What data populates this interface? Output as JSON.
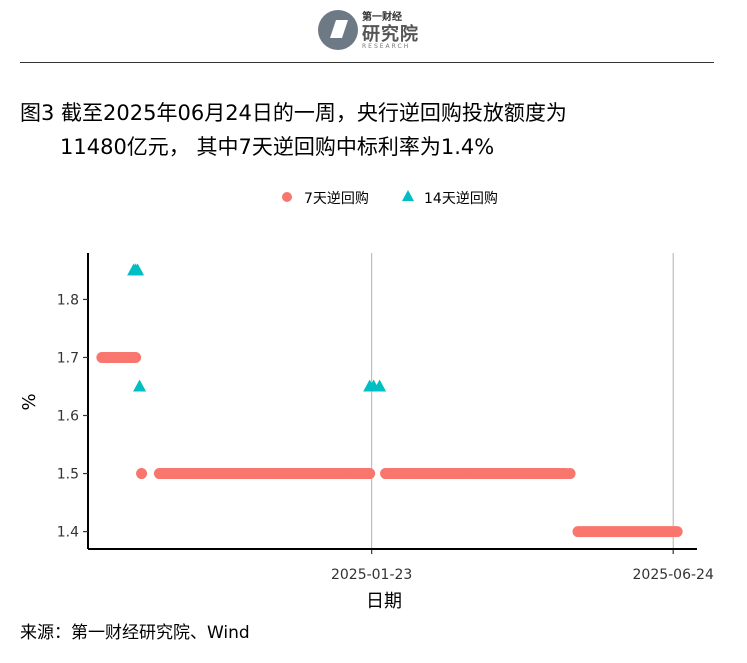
{
  "header": {
    "logo_small": "第一财经",
    "logo_name": "研究院",
    "logo_en": "RESEARCH"
  },
  "title": {
    "line1": "图3 截至2025年06月24日的一周，央行逆回购投放额度为",
    "line2": "11480亿元， 其中7天逆回购中标利率为1.4%"
  },
  "source": "来源：第一财经研究院、Wind",
  "colors": {
    "series7": "#f8766d",
    "series14": "#00bfc4"
  },
  "chart_data": {
    "type": "scatter",
    "xlabel": "日期",
    "ylabel": "%",
    "ylim": [
      1.37,
      1.88
    ],
    "y_ticks": [
      1.4,
      1.5,
      1.6,
      1.7,
      1.8
    ],
    "x_tick_labels": [
      "2025-01-23",
      "2025-06-24"
    ],
    "xlim": [
      "2024-09-02",
      "2025-07-06"
    ],
    "legend_position": "top",
    "grid": "vertical lines at labeled dates",
    "series": [
      {
        "name": "7天逆回购",
        "marker": "circle",
        "segments": [
          {
            "start": "2024-09-09",
            "end": "2024-09-26",
            "value": 1.7
          },
          {
            "start": "2024-09-29",
            "end": "2024-09-29",
            "value": 1.5
          },
          {
            "start": "2024-10-08",
            "end": "2025-01-22",
            "value": 1.5
          },
          {
            "start": "2025-01-30",
            "end": "2025-05-01",
            "value": 1.5
          },
          {
            "start": "2025-05-03",
            "end": "2025-05-03",
            "value": 1.5
          },
          {
            "start": "2025-05-07",
            "end": "2025-06-26",
            "value": 1.4
          }
        ]
      },
      {
        "name": "14天逆回购",
        "marker": "triangle",
        "points": [
          {
            "x": "2024-09-25",
            "y": 1.85
          },
          {
            "x": "2024-09-26",
            "y": 1.85
          },
          {
            "x": "2024-09-27",
            "y": 1.85
          },
          {
            "x": "2024-09-28",
            "y": 1.65
          },
          {
            "x": "2025-01-22",
            "y": 1.65
          },
          {
            "x": "2025-01-24",
            "y": 1.65
          },
          {
            "x": "2025-01-27",
            "y": 1.65
          }
        ]
      }
    ]
  }
}
